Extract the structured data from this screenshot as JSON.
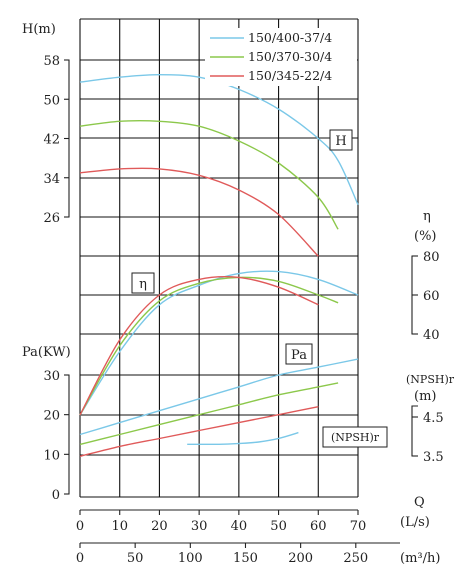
{
  "chart_data": {
    "type": "line",
    "title": "",
    "legend": {
      "placement": "top-right",
      "entries": [
        {
          "name": "150/400-37/4",
          "color": "#7bc8e8"
        },
        {
          "name": "150/370-30/4",
          "color": "#8cc84b"
        },
        {
          "name": "150/345-22/4",
          "color": "#e05a5a"
        }
      ]
    },
    "x_axis": {
      "label": "Q",
      "unit_primary": "(L/s)",
      "unit_secondary": "(m³/h)",
      "range": [
        0,
        70
      ],
      "ticks_primary": [
        "0",
        "10",
        "20",
        "30",
        "40",
        "50",
        "60",
        "70"
      ],
      "ticks_secondary": [
        "0",
        "50",
        "100",
        "150",
        "200",
        "250"
      ],
      "ticks_secondary_values": [
        0,
        50,
        100,
        150,
        200,
        250
      ]
    },
    "panels": {
      "head": {
        "label": "H(m)",
        "tag": "H",
        "ticks": [
          "58",
          "50",
          "42",
          "34",
          "26"
        ],
        "range": [
          26,
          58
        ],
        "series": [
          {
            "name": "150/400-37/4",
            "x": [
              0,
              10,
              20,
              30,
              40,
              50,
              60,
              65,
              70
            ],
            "y": [
              53.5,
              54.5,
              55,
              54.5,
              52,
              48,
              42,
              37.5,
              28.5
            ]
          },
          {
            "name": "150/370-30/4",
            "x": [
              0,
              10,
              20,
              30,
              40,
              50,
              60,
              65
            ],
            "y": [
              44.5,
              45.5,
              45.5,
              44.5,
              41.5,
              37,
              30,
              23.5
            ]
          },
          {
            "name": "150/345-22/4",
            "x": [
              0,
              10,
              20,
              30,
              40,
              50,
              60
            ],
            "y": [
              35,
              35.8,
              35.8,
              34.5,
              31.5,
              26.5,
              18
            ]
          }
        ]
      },
      "efficiency": {
        "label": "η",
        "unit": "(%)",
        "tag": "η",
        "ticks": [
          "80",
          "60",
          "40"
        ],
        "range": [
          40,
          80
        ],
        "series": [
          {
            "name": "150/400-37/4",
            "x": [
              0,
              10,
              20,
              30,
              40,
              50,
              60,
              70
            ],
            "y": [
              0,
              31,
              55,
              65,
              71,
              72,
              68,
              60
            ]
          },
          {
            "name": "150/370-30/4",
            "x": [
              0,
              10,
              20,
              30,
              40,
              50,
              60,
              65
            ],
            "y": [
              0,
              34,
              57,
              66,
              69,
              67,
              60,
              56
            ]
          },
          {
            "name": "150/345-22/4",
            "x": [
              0,
              10,
              20,
              30,
              40,
              50,
              60
            ],
            "y": [
              0,
              37,
              60,
              68,
              69,
              64,
              55
            ]
          }
        ]
      },
      "power": {
        "label": "Pa(KW)",
        "tag": "Pa",
        "ticks": [
          "30",
          "20",
          "10",
          "0"
        ],
        "range": [
          0,
          30
        ],
        "series": [
          {
            "name": "150/400-37/4",
            "x": [
              0,
              10,
              20,
              30,
              40,
              50,
              60,
              70
            ],
            "y": [
              15,
              18,
              21,
              24,
              27,
              30,
              32,
              34
            ]
          },
          {
            "name": "150/370-30/4",
            "x": [
              0,
              10,
              20,
              30,
              40,
              50,
              60,
              65
            ],
            "y": [
              12.5,
              15,
              17.5,
              20,
              22.5,
              25,
              27,
              28
            ]
          },
          {
            "name": "150/345-22/4",
            "x": [
              0,
              10,
              20,
              30,
              40,
              50,
              60
            ],
            "y": [
              9.5,
              12,
              14,
              16,
              18,
              20,
              22
            ]
          }
        ]
      },
      "npsh": {
        "label": "(NPSH)r",
        "unit": "(m)",
        "tag": "(NPSH)r",
        "ticks": [
          "4.5",
          "3.5"
        ],
        "range": [
          3.5,
          4.5
        ],
        "series": [
          {
            "name": "NPSHr",
            "x": [
              27,
              35,
              40,
              45,
              50,
              55
            ],
            "y": [
              3.8,
              3.8,
              3.82,
              3.86,
              3.95,
              4.1
            ]
          }
        ]
      }
    },
    "grid": true
  }
}
